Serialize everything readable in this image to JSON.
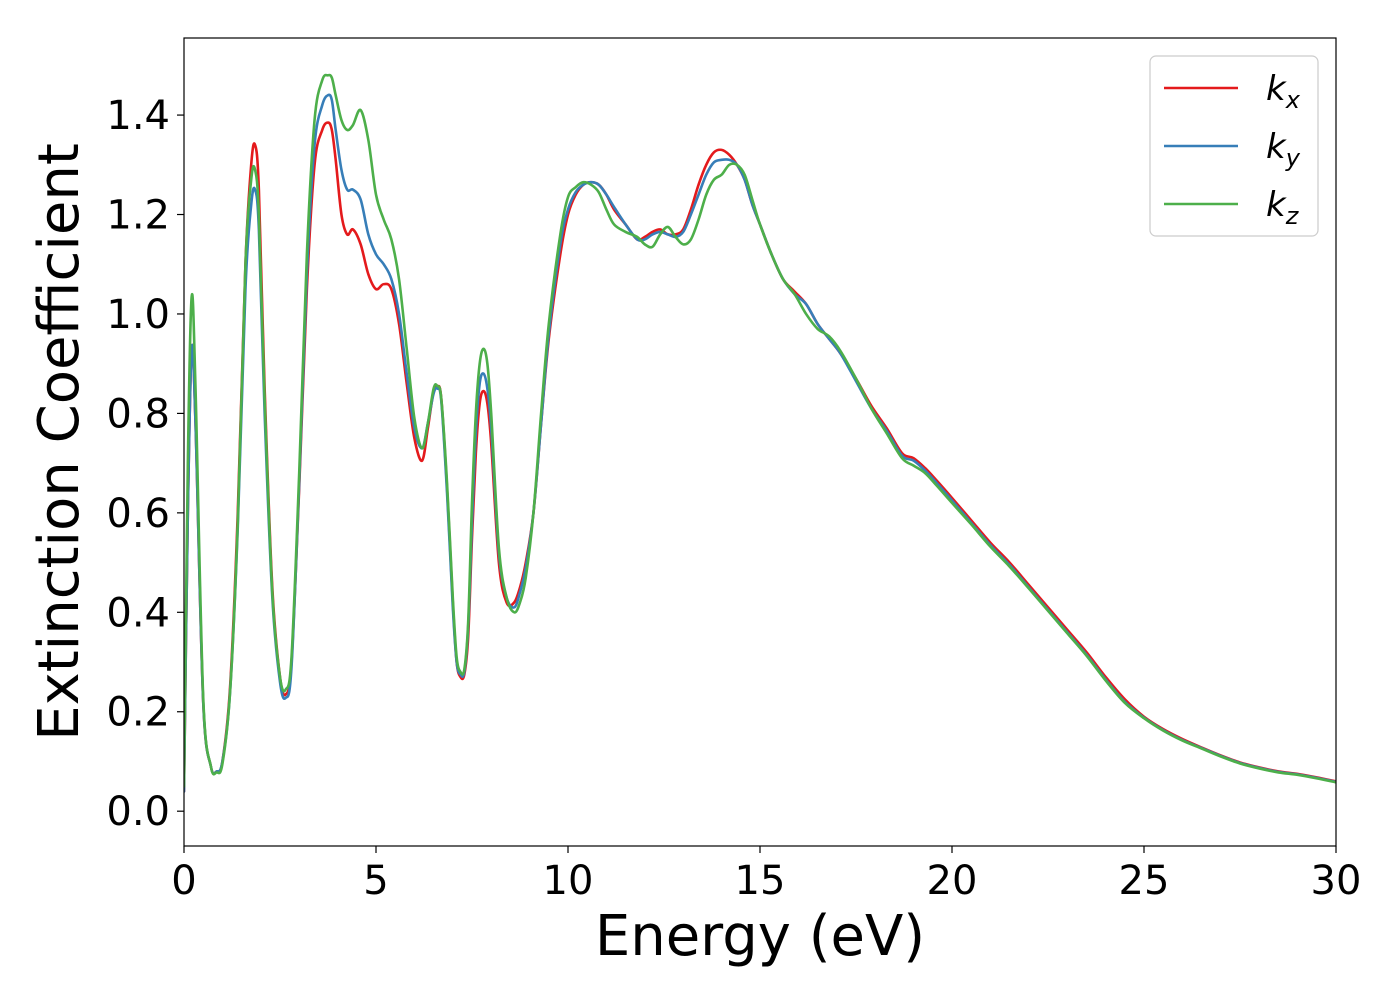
{
  "chart_data": {
    "type": "line",
    "title": "",
    "xlabel": "Energy (eV)",
    "ylabel": "Extinction Coefficient",
    "xlim": [
      0,
      30
    ],
    "ylim": [
      -0.07,
      1.555
    ],
    "xticks": [
      0,
      5,
      10,
      15,
      20,
      25,
      30
    ],
    "xtick_labels": [
      "0",
      "5",
      "10",
      "15",
      "20",
      "25",
      "30"
    ],
    "yticks": [
      0.0,
      0.2,
      0.4,
      0.6,
      0.8,
      1.0,
      1.2,
      1.4
    ],
    "ytick_labels": [
      "0.0",
      "0.2",
      "0.4",
      "0.6",
      "0.8",
      "1.0",
      "1.2",
      "1.4"
    ],
    "grid": false,
    "legend_position": "top-right",
    "series": [
      {
        "name": "k_x",
        "label_main": "k",
        "label_sub": "x",
        "color": "#e41a1c",
        "x": [
          0,
          0.1,
          0.2,
          0.3,
          0.5,
          0.7,
          0.85,
          1.0,
          1.2,
          1.4,
          1.6,
          1.75,
          1.85,
          1.95,
          2.1,
          2.3,
          2.5,
          2.65,
          2.8,
          3.0,
          3.2,
          3.4,
          3.6,
          3.75,
          3.85,
          3.95,
          4.1,
          4.25,
          4.4,
          4.6,
          4.8,
          5.0,
          5.2,
          5.4,
          5.6,
          5.8,
          6.0,
          6.2,
          6.35,
          6.5,
          6.6,
          6.7,
          6.85,
          7.0,
          7.1,
          7.2,
          7.3,
          7.4,
          7.5,
          7.6,
          7.7,
          7.8,
          7.9,
          8.0,
          8.2,
          8.4,
          8.6,
          8.75,
          8.9,
          9.1,
          9.3,
          9.5,
          9.8,
          10.0,
          10.2,
          10.4,
          10.6,
          10.8,
          11.0,
          11.2,
          11.5,
          11.8,
          12.0,
          12.2,
          12.4,
          12.6,
          12.8,
          13.0,
          13.2,
          13.4,
          13.6,
          13.8,
          14.0,
          14.2,
          14.4,
          14.6,
          14.8,
          15.0,
          15.3,
          15.6,
          15.9,
          16.2,
          16.5,
          16.8,
          17.1,
          17.5,
          17.9,
          18.3,
          18.7,
          19.0,
          19.3,
          19.6,
          20.0,
          20.5,
          21.0,
          21.5,
          22.0,
          22.5,
          23.0,
          23.5,
          24.0,
          24.5,
          25.0,
          25.5,
          26.0,
          26.5,
          27.0,
          27.5,
          28.0,
          28.5,
          29.0,
          29.5,
          30.0
        ],
        "y": [
          0.04,
          0.6,
          0.93,
          0.78,
          0.22,
          0.09,
          0.08,
          0.1,
          0.25,
          0.6,
          1.1,
          1.3,
          1.34,
          1.25,
          0.85,
          0.45,
          0.27,
          0.235,
          0.3,
          0.65,
          1.05,
          1.3,
          1.37,
          1.385,
          1.37,
          1.31,
          1.2,
          1.16,
          1.17,
          1.14,
          1.08,
          1.05,
          1.06,
          1.05,
          0.98,
          0.86,
          0.75,
          0.705,
          0.77,
          0.845,
          0.855,
          0.83,
          0.65,
          0.42,
          0.3,
          0.27,
          0.275,
          0.35,
          0.55,
          0.72,
          0.82,
          0.845,
          0.82,
          0.74,
          0.5,
          0.42,
          0.42,
          0.45,
          0.5,
          0.6,
          0.78,
          0.95,
          1.12,
          1.2,
          1.24,
          1.26,
          1.265,
          1.26,
          1.24,
          1.21,
          1.18,
          1.15,
          1.155,
          1.165,
          1.17,
          1.16,
          1.16,
          1.17,
          1.21,
          1.26,
          1.3,
          1.325,
          1.33,
          1.32,
          1.3,
          1.27,
          1.22,
          1.18,
          1.12,
          1.07,
          1.045,
          1.02,
          0.98,
          0.95,
          0.92,
          0.87,
          0.815,
          0.77,
          0.72,
          0.71,
          0.69,
          0.665,
          0.63,
          0.585,
          0.54,
          0.5,
          0.455,
          0.41,
          0.365,
          0.32,
          0.27,
          0.225,
          0.19,
          0.165,
          0.145,
          0.128,
          0.112,
          0.098,
          0.088,
          0.08,
          0.075,
          0.068,
          0.06
        ]
      },
      {
        "name": "k_y",
        "label_main": "k",
        "label_sub": "y",
        "color": "#377eb8",
        "x": [
          0,
          0.1,
          0.2,
          0.3,
          0.5,
          0.7,
          0.85,
          1.0,
          1.2,
          1.4,
          1.6,
          1.75,
          1.85,
          1.95,
          2.1,
          2.3,
          2.5,
          2.65,
          2.8,
          3.0,
          3.2,
          3.4,
          3.6,
          3.75,
          3.85,
          3.95,
          4.1,
          4.25,
          4.4,
          4.6,
          4.8,
          5.0,
          5.2,
          5.4,
          5.6,
          5.8,
          6.0,
          6.2,
          6.35,
          6.5,
          6.6,
          6.7,
          6.85,
          7.0,
          7.1,
          7.2,
          7.3,
          7.4,
          7.5,
          7.6,
          7.7,
          7.8,
          7.9,
          8.0,
          8.2,
          8.4,
          8.6,
          8.75,
          8.9,
          9.1,
          9.3,
          9.5,
          9.8,
          10.0,
          10.2,
          10.4,
          10.6,
          10.8,
          11.0,
          11.2,
          11.5,
          11.8,
          12.0,
          12.2,
          12.4,
          12.6,
          12.8,
          13.0,
          13.2,
          13.4,
          13.6,
          13.8,
          14.0,
          14.2,
          14.4,
          14.6,
          14.8,
          15.0,
          15.3,
          15.6,
          15.9,
          16.2,
          16.5,
          16.8,
          17.1,
          17.5,
          17.9,
          18.3,
          18.7,
          19.0,
          19.3,
          19.6,
          20.0,
          20.5,
          21.0,
          21.5,
          22.0,
          22.5,
          23.0,
          23.5,
          24.0,
          24.5,
          25.0,
          25.5,
          26.0,
          26.5,
          27.0,
          27.5,
          28.0,
          28.5,
          29.0,
          29.5,
          30.0
        ],
        "y": [
          0.04,
          0.6,
          0.93,
          0.78,
          0.22,
          0.09,
          0.08,
          0.1,
          0.24,
          0.57,
          1.05,
          1.22,
          1.25,
          1.17,
          0.8,
          0.43,
          0.26,
          0.228,
          0.29,
          0.66,
          1.08,
          1.34,
          1.42,
          1.44,
          1.43,
          1.37,
          1.29,
          1.25,
          1.25,
          1.23,
          1.16,
          1.12,
          1.1,
          1.07,
          1.0,
          0.88,
          0.77,
          0.73,
          0.78,
          0.84,
          0.85,
          0.825,
          0.64,
          0.41,
          0.3,
          0.275,
          0.28,
          0.37,
          0.58,
          0.76,
          0.86,
          0.88,
          0.85,
          0.77,
          0.52,
          0.43,
          0.41,
          0.44,
          0.49,
          0.6,
          0.78,
          0.96,
          1.14,
          1.21,
          1.245,
          1.26,
          1.265,
          1.26,
          1.24,
          1.215,
          1.18,
          1.15,
          1.15,
          1.16,
          1.165,
          1.16,
          1.155,
          1.165,
          1.2,
          1.24,
          1.28,
          1.305,
          1.31,
          1.31,
          1.3,
          1.27,
          1.22,
          1.18,
          1.12,
          1.07,
          1.04,
          1.02,
          0.98,
          0.95,
          0.92,
          0.865,
          0.81,
          0.765,
          0.715,
          0.705,
          0.685,
          0.66,
          0.625,
          0.58,
          0.535,
          0.495,
          0.45,
          0.405,
          0.36,
          0.315,
          0.265,
          0.22,
          0.188,
          0.163,
          0.143,
          0.127,
          0.111,
          0.097,
          0.087,
          0.079,
          0.074,
          0.067,
          0.059
        ]
      },
      {
        "name": "k_z",
        "label_main": "k",
        "label_sub": "z",
        "color": "#4daf4a",
        "x": [
          0,
          0.1,
          0.2,
          0.3,
          0.5,
          0.7,
          0.85,
          1.0,
          1.2,
          1.4,
          1.6,
          1.75,
          1.85,
          1.95,
          2.1,
          2.3,
          2.5,
          2.65,
          2.8,
          3.0,
          3.2,
          3.4,
          3.6,
          3.75,
          3.85,
          3.95,
          4.1,
          4.25,
          4.4,
          4.6,
          4.8,
          5.0,
          5.2,
          5.4,
          5.6,
          5.8,
          6.0,
          6.2,
          6.35,
          6.5,
          6.6,
          6.7,
          6.85,
          7.0,
          7.1,
          7.2,
          7.3,
          7.4,
          7.5,
          7.6,
          7.7,
          7.8,
          7.9,
          8.0,
          8.2,
          8.4,
          8.6,
          8.75,
          8.9,
          9.1,
          9.3,
          9.5,
          9.8,
          10.0,
          10.2,
          10.4,
          10.6,
          10.8,
          11.0,
          11.2,
          11.5,
          11.8,
          12.0,
          12.2,
          12.4,
          12.6,
          12.8,
          13.0,
          13.2,
          13.4,
          13.6,
          13.8,
          14.0,
          14.2,
          14.4,
          14.6,
          14.8,
          15.0,
          15.3,
          15.6,
          15.9,
          16.2,
          16.5,
          16.8,
          17.1,
          17.5,
          17.9,
          18.3,
          18.7,
          19.0,
          19.3,
          19.6,
          20.0,
          20.5,
          21.0,
          21.5,
          22.0,
          22.5,
          23.0,
          23.5,
          24.0,
          24.5,
          25.0,
          25.5,
          26.0,
          26.5,
          27.0,
          27.5,
          28.0,
          28.5,
          29.0,
          29.5,
          30.0
        ],
        "y": [
          0.05,
          0.7,
          1.035,
          0.85,
          0.23,
          0.09,
          0.078,
          0.095,
          0.24,
          0.58,
          1.1,
          1.27,
          1.29,
          1.2,
          0.83,
          0.44,
          0.27,
          0.245,
          0.31,
          0.68,
          1.12,
          1.39,
          1.47,
          1.48,
          1.475,
          1.44,
          1.39,
          1.37,
          1.38,
          1.41,
          1.35,
          1.24,
          1.19,
          1.15,
          1.07,
          0.93,
          0.79,
          0.73,
          0.78,
          0.85,
          0.855,
          0.83,
          0.66,
          0.43,
          0.31,
          0.28,
          0.285,
          0.38,
          0.62,
          0.8,
          0.9,
          0.93,
          0.9,
          0.8,
          0.53,
          0.43,
          0.4,
          0.42,
          0.47,
          0.6,
          0.8,
          0.98,
          1.16,
          1.235,
          1.255,
          1.265,
          1.26,
          1.245,
          1.21,
          1.18,
          1.165,
          1.155,
          1.14,
          1.135,
          1.16,
          1.175,
          1.155,
          1.14,
          1.15,
          1.19,
          1.24,
          1.27,
          1.28,
          1.3,
          1.3,
          1.28,
          1.23,
          1.18,
          1.12,
          1.07,
          1.04,
          1.0,
          0.97,
          0.955,
          0.925,
          0.87,
          0.81,
          0.76,
          0.71,
          0.695,
          0.68,
          0.655,
          0.62,
          0.577,
          0.532,
          0.492,
          0.448,
          0.403,
          0.358,
          0.313,
          0.263,
          0.218,
          0.187,
          0.162,
          0.142,
          0.126,
          0.11,
          0.096,
          0.086,
          0.078,
          0.073,
          0.066,
          0.058
        ]
      }
    ]
  }
}
